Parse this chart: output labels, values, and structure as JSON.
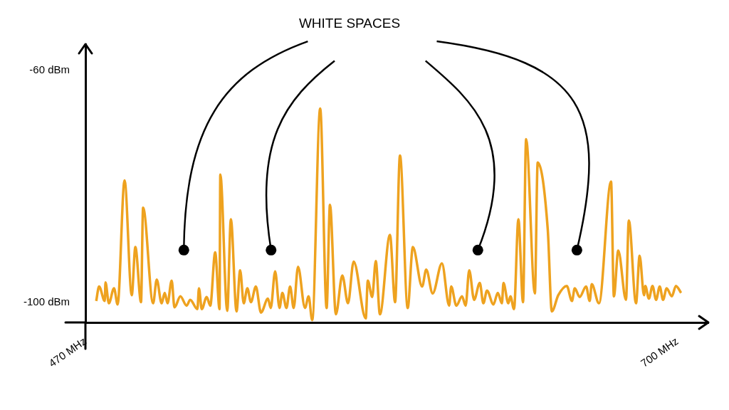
{
  "chart_data": {
    "type": "line",
    "title": "WHITE SPACES",
    "xlim": [
      470,
      712
    ],
    "ylim": [
      -103.5,
      -55.5
    ],
    "xticks": [
      {
        "value": 470,
        "label": "470 MHz"
      },
      {
        "value": 700,
        "label": "700 MHz"
      }
    ],
    "yticks": [
      {
        "value": -60,
        "label": "-60 dBm"
      },
      {
        "value": -100,
        "label": "-100 dBm"
      }
    ],
    "grid": false,
    "legend": false,
    "series": [
      {
        "color": "#eea21f",
        "x": [
          474.2,
          475.3,
          477.5,
          477.8,
          479.1,
          481.1,
          482.5,
          485.2,
          488.0,
          489.4,
          491.6,
          492.4,
          496.3,
          497.7,
          499.6,
          500.8,
          501.9,
          503.5,
          504.6,
          506.9,
          509.3,
          510.7,
          513.5,
          514.1,
          515.2,
          517.1,
          518.5,
          520.4,
          522.1,
          522.4,
          525.1,
          526.5,
          528.7,
          530.1,
          531.5,
          532.9,
          534.3,
          536.2,
          538.2,
          540.9,
          542.0,
          543.7,
          545.4,
          546.5,
          548.1,
          549.5,
          550.9,
          552.6,
          555.3,
          556.7,
          558.1,
          561.2,
          563.7,
          565.0,
          567.3,
          569.8,
          572.0,
          574.2,
          578.9,
          579.7,
          581.4,
          582.8,
          584.4,
          588.3,
          590.3,
          592.2,
          595.2,
          597.2,
          600.8,
          602.4,
          604.9,
          608.5,
          611.3,
          612.1,
          614.1,
          616.3,
          617.7,
          619.1,
          621.0,
          623.2,
          624.6,
          626.0,
          628.5,
          630.2,
          631.8,
          632.4,
          634.3,
          635.1,
          636.5,
          638.2,
          640.0,
          641.2,
          644.6,
          645.7,
          649.6,
          651.2,
          653.7,
          657.0,
          659.0,
          660.1,
          662.0,
          664.5,
          665.9,
          666.7,
          669.5,
          674.2,
          675.3,
          677.0,
          680.0,
          681.1,
          683.9,
          685.3,
          687.0,
          687.5,
          688.9,
          690.3,
          691.7,
          693.1,
          694.4,
          695.8,
          697.8,
          699.4,
          701.4
        ],
        "values": [
          -99.8,
          -97.3,
          -99.8,
          -96.6,
          -100.2,
          -97.6,
          -100.4,
          -79.0,
          -98.8,
          -90.5,
          -100.0,
          -83.7,
          -100.2,
          -96.1,
          -100.2,
          -98.4,
          -100.2,
          -96.3,
          -100.9,
          -99.0,
          -100.6,
          -99.6,
          -101.2,
          -97.6,
          -101.2,
          -99.1,
          -100.6,
          -91.4,
          -101.2,
          -78.0,
          -101.5,
          -85.7,
          -101.6,
          -94.5,
          -100.2,
          -97.6,
          -100.0,
          -97.3,
          -101.8,
          -99.4,
          -101.0,
          -94.7,
          -101.0,
          -98.4,
          -101.0,
          -97.3,
          -101.0,
          -93.9,
          -101.0,
          -99.0,
          -103.1,
          -66.6,
          -101.0,
          -83.2,
          -102.1,
          -95.4,
          -100.2,
          -93.0,
          -102.8,
          -96.3,
          -99.1,
          -92.9,
          -102.1,
          -88.4,
          -100.0,
          -74.7,
          -101.0,
          -90.5,
          -97.3,
          -94.4,
          -98.5,
          -93.3,
          -100.6,
          -97.3,
          -100.6,
          -99.0,
          -100.6,
          -94.5,
          -99.6,
          -96.7,
          -100.2,
          -98.0,
          -100.4,
          -98.4,
          -100.2,
          -96.7,
          -100.2,
          -99.0,
          -101.2,
          -85.7,
          -100.0,
          -71.9,
          -98.5,
          -75.9,
          -87.4,
          -101.6,
          -98.8,
          -97.2,
          -99.8,
          -97.6,
          -99.1,
          -97.3,
          -99.8,
          -96.9,
          -100.2,
          -79.2,
          -99.0,
          -91.1,
          -99.6,
          -85.9,
          -100.2,
          -92.0,
          -98.8,
          -97.2,
          -99.4,
          -97.2,
          -99.6,
          -97.3,
          -99.6,
          -97.6,
          -99.0,
          -97.2,
          -98.4
        ]
      }
    ]
  }
}
